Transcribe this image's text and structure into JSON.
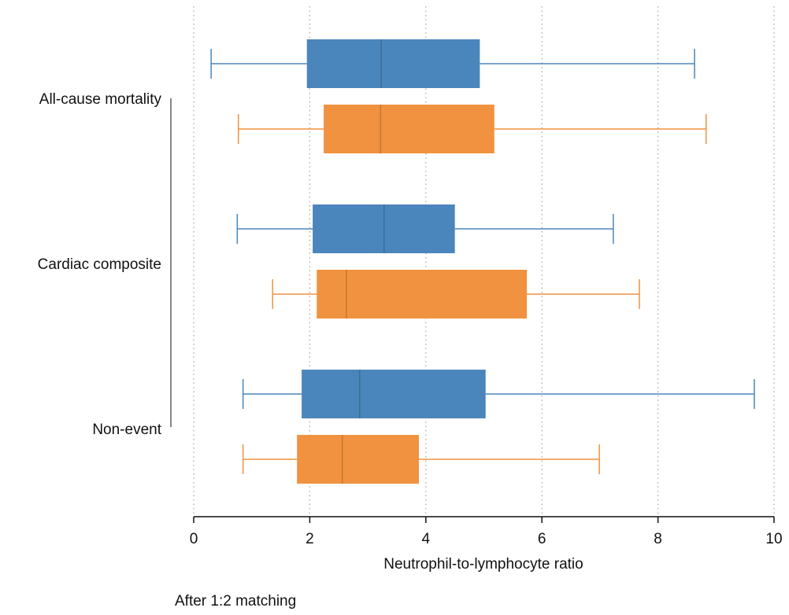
{
  "chart_data": {
    "type": "boxplot",
    "orientation": "horizontal",
    "x_label": "Neutrophil-to-lymphocyte ratio",
    "caption": "After 1:2 matching",
    "categories": [
      "All-cause mortality",
      "Cardiac composite",
      "Non-event"
    ],
    "series": [
      {
        "color": "#4a86bb",
        "low": [
          0.3,
          0.75,
          0.85
        ],
        "q1": [
          1.95,
          2.05,
          1.86
        ],
        "median": [
          3.23,
          3.28,
          2.86
        ],
        "q3": [
          4.93,
          4.5,
          5.03
        ],
        "high": [
          8.63,
          7.23,
          9.66
        ]
      },
      {
        "color": "#f0923f",
        "low": [
          0.77,
          1.36,
          0.85
        ],
        "q1": [
          2.24,
          2.12,
          1.78
        ],
        "median": [
          3.22,
          2.63,
          2.56
        ],
        "q3": [
          5.18,
          5.74,
          3.88
        ],
        "high": [
          8.83,
          7.68,
          6.99
        ]
      }
    ],
    "xlim": [
      0,
      10
    ],
    "xticks": [
      0,
      2,
      4,
      6,
      8,
      10
    ],
    "grid": true
  }
}
